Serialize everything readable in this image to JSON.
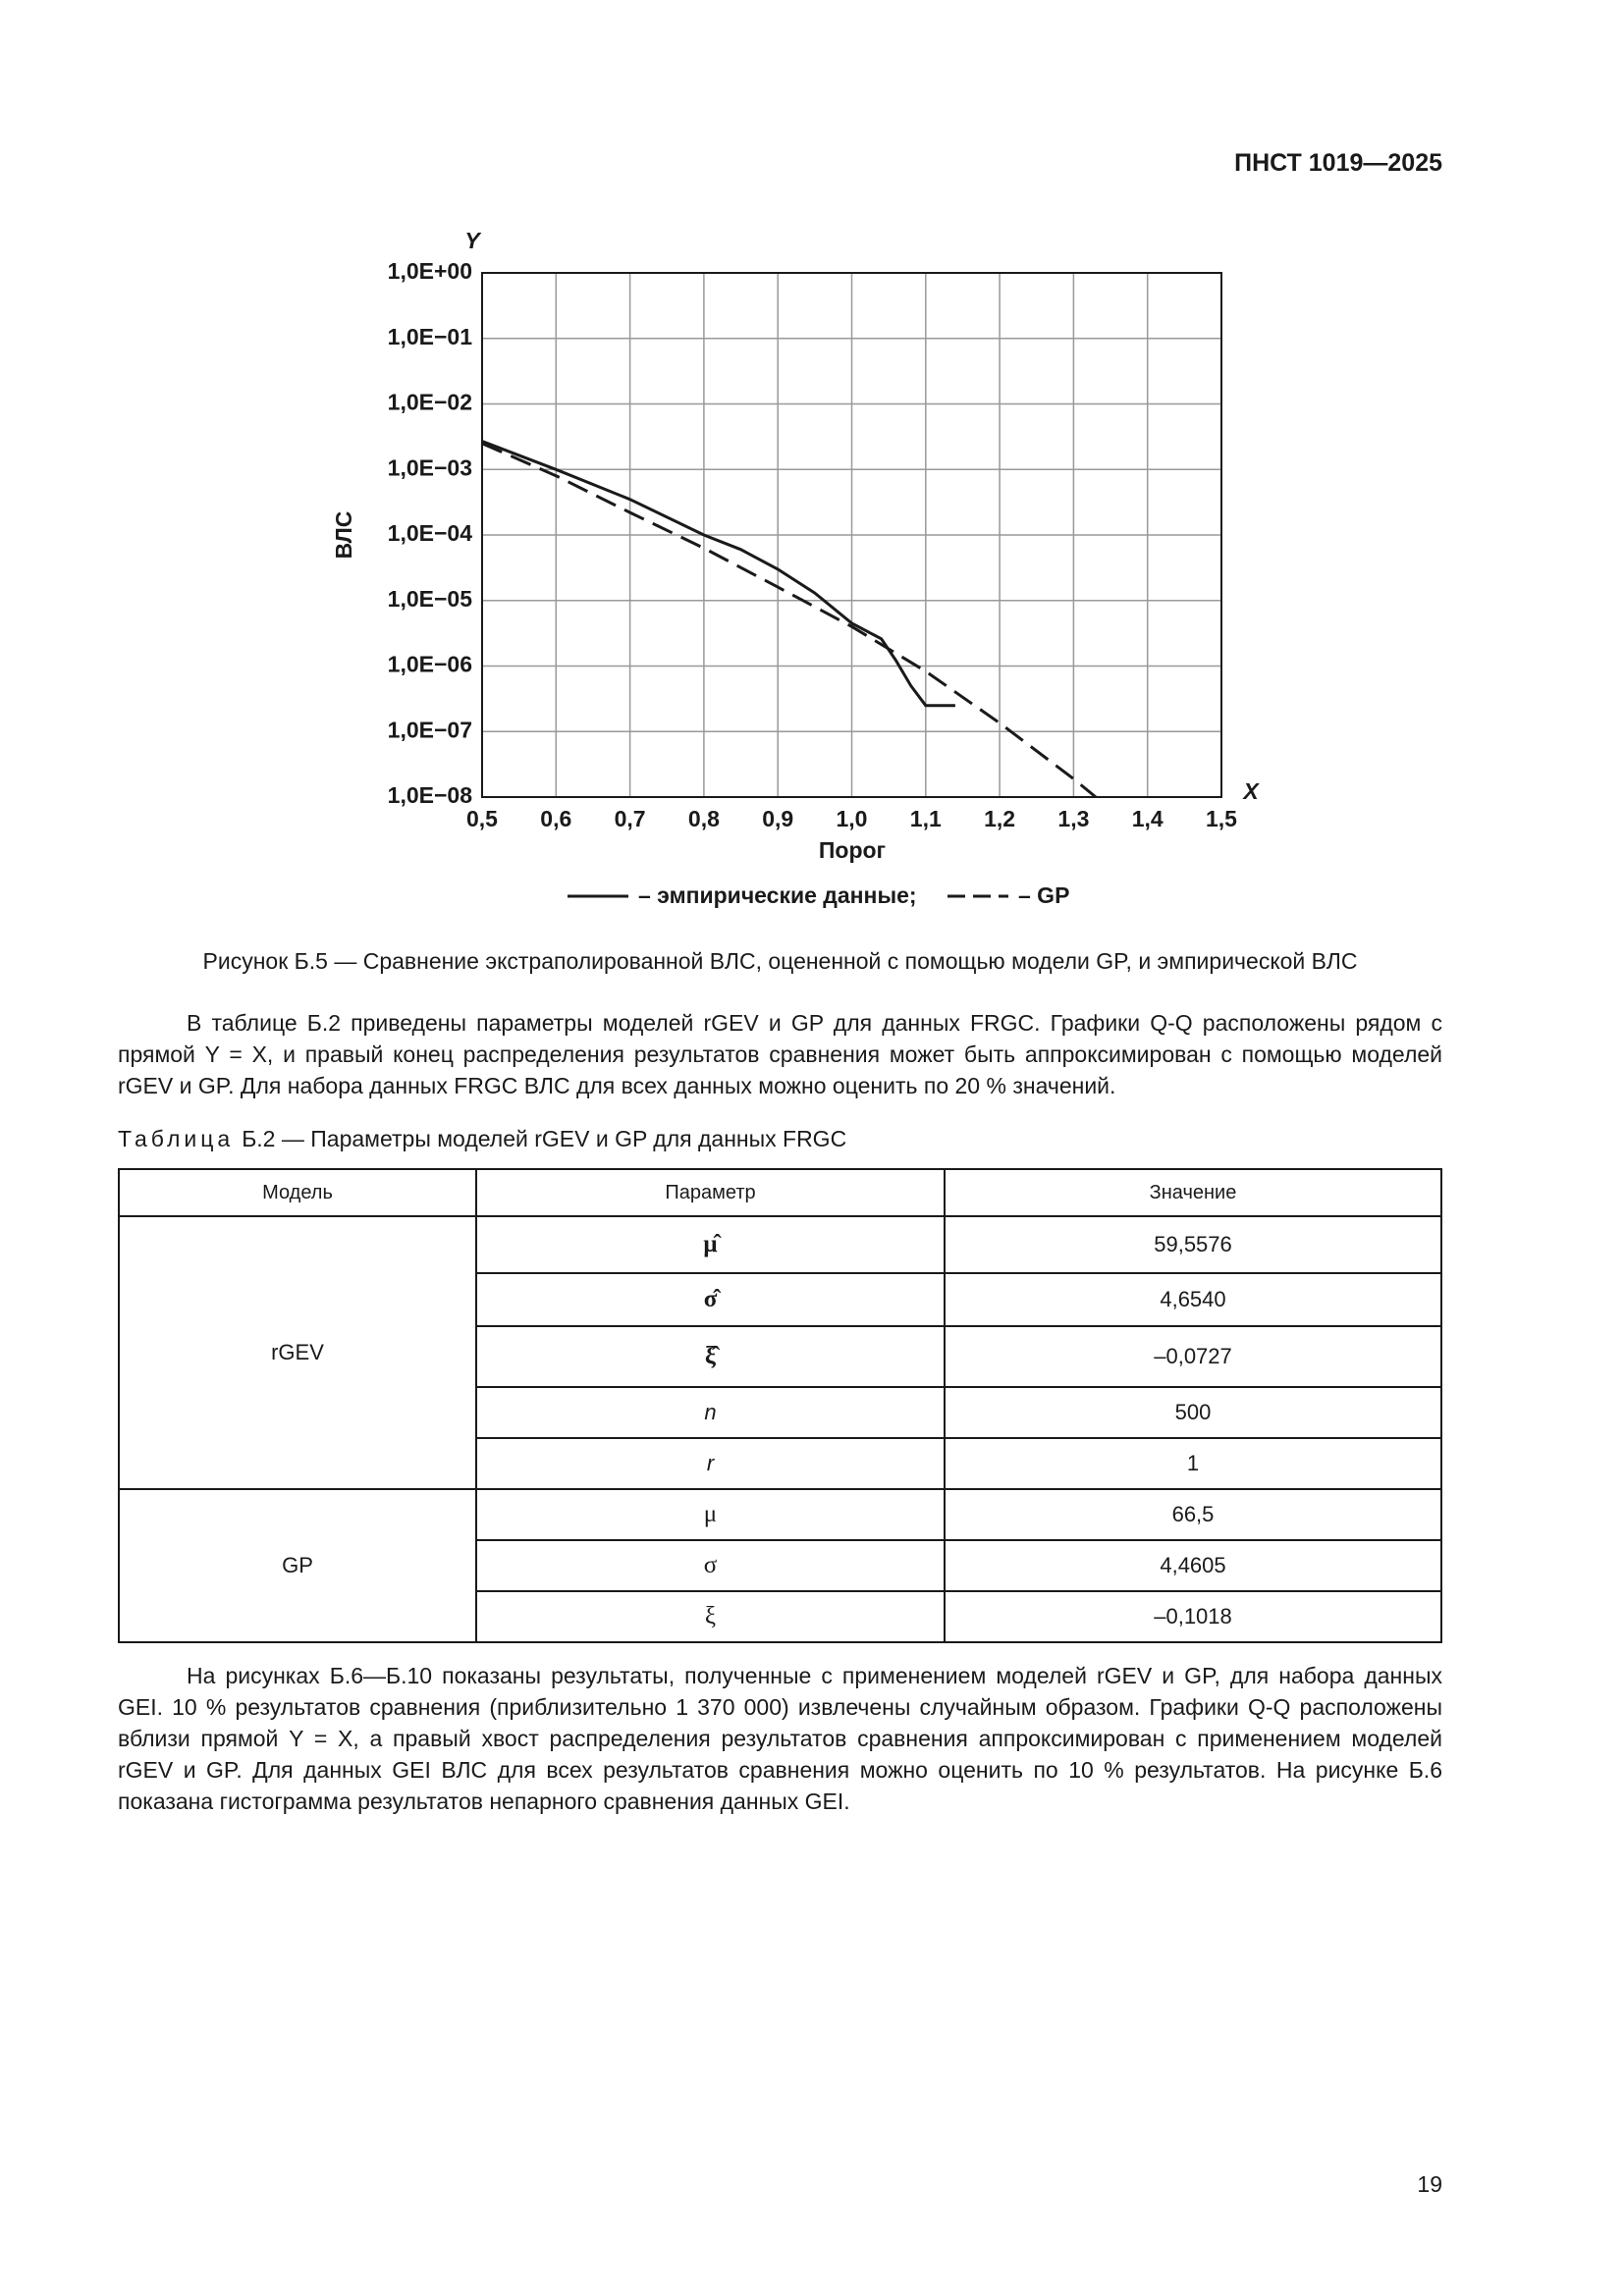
{
  "header": {
    "code": "ПНСТ 1019—2025"
  },
  "chart_data": {
    "type": "line",
    "y_label": "Y",
    "x_label": "X",
    "y_axis_title": "ВЛС",
    "x_axis_title": "Порог",
    "xlim": [
      0.5,
      1.5
    ],
    "ylim": [
      1e-08,
      1
    ],
    "log_y": true,
    "grid": true,
    "xticks": [
      {
        "value": 0.5,
        "label": "0,5"
      },
      {
        "value": 0.6,
        "label": "0,6"
      },
      {
        "value": 0.7,
        "label": "0,7"
      },
      {
        "value": 0.8,
        "label": "0,8"
      },
      {
        "value": 0.9,
        "label": "0,9"
      },
      {
        "value": 1.0,
        "label": "1,0"
      },
      {
        "value": 1.1,
        "label": "1,1"
      },
      {
        "value": 1.2,
        "label": "1,2"
      },
      {
        "value": 1.3,
        "label": "1,3"
      },
      {
        "value": 1.4,
        "label": "1,4"
      },
      {
        "value": 1.5,
        "label": "1,5"
      }
    ],
    "yticks": [
      {
        "value": 1,
        "label": "1,0E+00"
      },
      {
        "value": 0.1,
        "label": "1,0E−01"
      },
      {
        "value": 0.01,
        "label": "1,0E−02"
      },
      {
        "value": 0.001,
        "label": "1,0E−03"
      },
      {
        "value": 0.0001,
        "label": "1,0E−04"
      },
      {
        "value": 1e-05,
        "label": "1,0E−05"
      },
      {
        "value": 1e-06,
        "label": "1,0E−06"
      },
      {
        "value": 1e-07,
        "label": "1,0E−07"
      },
      {
        "value": 1e-08,
        "label": "1,0E−08"
      }
    ],
    "series": [
      {
        "name": "– эмпирические данные;",
        "color": "#1a1a1a",
        "dash": "solid",
        "x": [
          0.5,
          0.6,
          0.7,
          0.8,
          0.85,
          0.9,
          0.95,
          1.0,
          1.04,
          1.06,
          1.08,
          1.1,
          1.14
        ],
        "values": [
          0.0027,
          0.001,
          0.00035,
          0.0001,
          6e-05,
          3e-05,
          1.3e-05,
          4.5e-06,
          2.6e-06,
          1.2e-06,
          5e-07,
          2.5e-07,
          2.5e-07
        ]
      },
      {
        "name": "– GP",
        "color": "#1a1a1a",
        "dash": "dashed",
        "x": [
          0.5,
          0.6,
          0.7,
          0.8,
          0.9,
          1.0,
          1.1,
          1.2,
          1.3,
          1.33
        ],
        "values": [
          0.0025,
          0.0008,
          0.00022,
          6.3e-05,
          1.6e-05,
          4e-06,
          8.3e-07,
          1.35e-07,
          1.9e-08,
          1e-08
        ]
      }
    ]
  },
  "caption": "Рисунок Б.5 — Сравнение экстраполированной ВЛС, оцененной с помощью модели GP, и эмпирической ВЛС",
  "paragraphs": [
    "В таблице Б.2 приведены параметры моделей rGEV и GP для данных FRGC. Графики Q-Q расположены рядом с прямой Y = X, и правый конец распределения результатов сравнения может быть аппроксимирован с помощью моделей rGEV и GP. Для набора данных FRGC ВЛС для всех данных можно оценить по 20 % значений.",
    "На рисунках Б.6—Б.10 показаны результаты, полученные с применением моделей rGEV и GP, для набора данных GEI. 10 % результатов сравнения (приблизительно 1 370 000) извлечены случайным образом. Графики Q-Q расположены вблизи прямой Y = X, а правый хвост распределения результатов сравнения аппроксимирован с применением моделей rGEV и GP. Для данных GEI ВЛС для всех результатов сравнения можно оценить по 10 % результатов. На рисунке Б.6 показана гистограмма результатов непарного сравнения данных GEI."
  ],
  "table": {
    "label": "Таблица",
    "title": "Б.2 — Параметры моделей rGEV и GP для данных FRGC",
    "header": [
      "Модель",
      "Параметр",
      "Значение"
    ],
    "groups": [
      {
        "model": "rGEV",
        "rows": [
          [
            "μ̂",
            "59,5576"
          ],
          [
            "σ̂",
            "4,6540"
          ],
          [
            "ξ̂",
            "–0,0727"
          ],
          [
            "n",
            "500"
          ],
          [
            "r",
            "1"
          ]
        ]
      },
      {
        "model": "GP",
        "rows": [
          [
            "μ",
            "66,5"
          ],
          [
            "σ",
            "4,4605"
          ],
          [
            "ξ",
            "–0,1018"
          ]
        ]
      }
    ]
  },
  "page_number": "19"
}
